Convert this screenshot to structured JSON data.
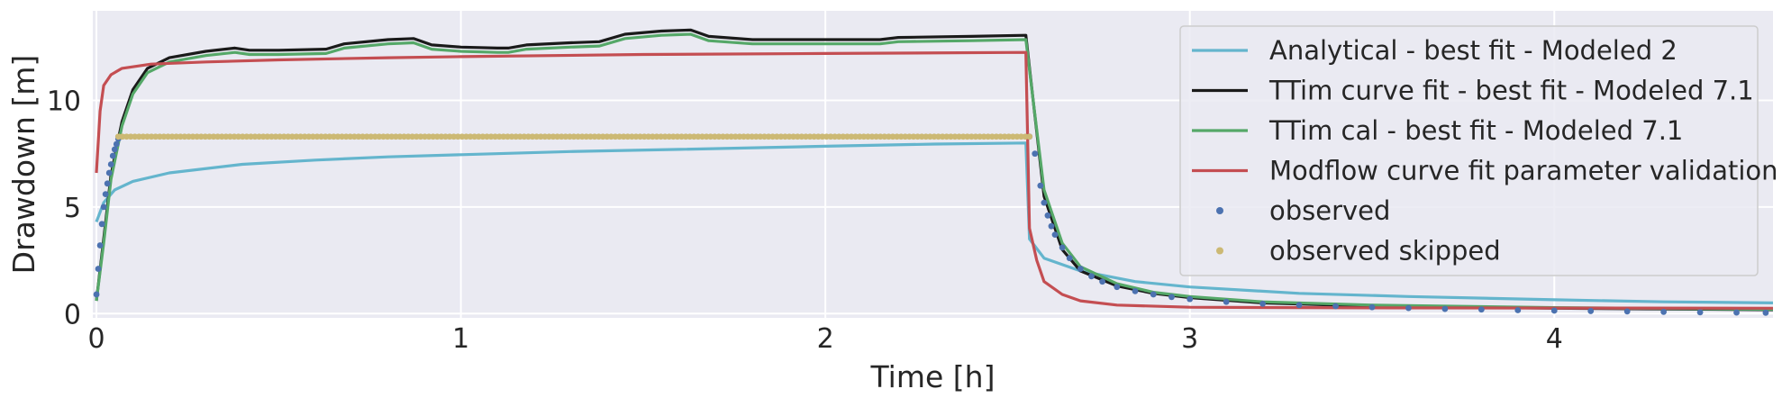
{
  "chart_data": {
    "type": "line",
    "xlabel": "Time [h]",
    "ylabel": "Drawdown [m]",
    "xlim": [
      -0.01,
      4.6
    ],
    "ylim": [
      -0.2,
      14.2
    ],
    "xticks": [
      0,
      1,
      2,
      3,
      4
    ],
    "yticks": [
      0,
      5,
      10
    ],
    "grid": true,
    "legend_position": "top-right",
    "colors": {
      "plot_background": "#eaeaf2",
      "grid": "#ffffff",
      "text": "#262626"
    },
    "series": [
      {
        "name": "Analytical - best fit - Modeled 2",
        "kind": "line",
        "color": "#64b5cd",
        "points": [
          [
            0.0,
            4.3
          ],
          [
            0.02,
            5.2
          ],
          [
            0.05,
            5.8
          ],
          [
            0.1,
            6.2
          ],
          [
            0.2,
            6.6
          ],
          [
            0.4,
            7.0
          ],
          [
            0.6,
            7.2
          ],
          [
            0.8,
            7.35
          ],
          [
            1.0,
            7.45
          ],
          [
            1.3,
            7.6
          ],
          [
            1.6,
            7.7
          ],
          [
            2.0,
            7.85
          ],
          [
            2.3,
            7.95
          ],
          [
            2.55,
            8.0
          ],
          [
            2.56,
            3.5
          ],
          [
            2.6,
            2.6
          ],
          [
            2.7,
            2.0
          ],
          [
            2.85,
            1.5
          ],
          [
            3.0,
            1.25
          ],
          [
            3.3,
            0.95
          ],
          [
            3.6,
            0.8
          ],
          [
            4.0,
            0.65
          ],
          [
            4.3,
            0.55
          ],
          [
            4.6,
            0.5
          ]
        ]
      },
      {
        "name": "TTim curve fit - best fit - Modeled 7.1",
        "kind": "line",
        "color": "#1a1a1a",
        "points": [
          [
            0.0,
            0.6
          ],
          [
            0.02,
            3.5
          ],
          [
            0.04,
            6.5
          ],
          [
            0.07,
            9.0
          ],
          [
            0.1,
            10.5
          ],
          [
            0.14,
            11.5
          ],
          [
            0.2,
            12.0
          ],
          [
            0.3,
            12.3
          ],
          [
            0.38,
            12.45
          ],
          [
            0.42,
            12.35
          ],
          [
            0.5,
            12.35
          ],
          [
            0.63,
            12.4
          ],
          [
            0.68,
            12.65
          ],
          [
            0.8,
            12.85
          ],
          [
            0.87,
            12.9
          ],
          [
            0.92,
            12.6
          ],
          [
            1.0,
            12.5
          ],
          [
            1.1,
            12.45
          ],
          [
            1.13,
            12.45
          ],
          [
            1.18,
            12.6
          ],
          [
            1.3,
            12.7
          ],
          [
            1.38,
            12.75
          ],
          [
            1.45,
            13.1
          ],
          [
            1.55,
            13.25
          ],
          [
            1.63,
            13.3
          ],
          [
            1.68,
            13.0
          ],
          [
            1.8,
            12.85
          ],
          [
            2.0,
            12.85
          ],
          [
            2.15,
            12.85
          ],
          [
            2.2,
            12.95
          ],
          [
            2.4,
            13.0
          ],
          [
            2.55,
            13.05
          ],
          [
            2.57,
            10.0
          ],
          [
            2.6,
            5.5
          ],
          [
            2.65,
            3.0
          ],
          [
            2.7,
            2.0
          ],
          [
            2.8,
            1.3
          ],
          [
            2.9,
            0.95
          ],
          [
            3.0,
            0.75
          ],
          [
            3.2,
            0.5
          ],
          [
            3.5,
            0.35
          ],
          [
            4.0,
            0.25
          ],
          [
            4.6,
            0.18
          ]
        ]
      },
      {
        "name": "TTim cal - best fit - Modeled 7.1",
        "kind": "line",
        "color": "#55a868",
        "points": [
          [
            0.0,
            0.6
          ],
          [
            0.02,
            3.3
          ],
          [
            0.04,
            6.3
          ],
          [
            0.07,
            8.8
          ],
          [
            0.1,
            10.3
          ],
          [
            0.14,
            11.3
          ],
          [
            0.2,
            11.8
          ],
          [
            0.3,
            12.1
          ],
          [
            0.38,
            12.25
          ],
          [
            0.42,
            12.15
          ],
          [
            0.5,
            12.15
          ],
          [
            0.63,
            12.2
          ],
          [
            0.68,
            12.45
          ],
          [
            0.8,
            12.65
          ],
          [
            0.87,
            12.7
          ],
          [
            0.92,
            12.4
          ],
          [
            1.0,
            12.3
          ],
          [
            1.1,
            12.25
          ],
          [
            1.13,
            12.25
          ],
          [
            1.18,
            12.4
          ],
          [
            1.3,
            12.5
          ],
          [
            1.38,
            12.55
          ],
          [
            1.45,
            12.9
          ],
          [
            1.55,
            13.05
          ],
          [
            1.63,
            13.1
          ],
          [
            1.68,
            12.8
          ],
          [
            1.8,
            12.65
          ],
          [
            2.0,
            12.65
          ],
          [
            2.15,
            12.65
          ],
          [
            2.2,
            12.75
          ],
          [
            2.4,
            12.8
          ],
          [
            2.55,
            12.85
          ],
          [
            2.57,
            10.0
          ],
          [
            2.6,
            5.8
          ],
          [
            2.65,
            3.3
          ],
          [
            2.7,
            2.2
          ],
          [
            2.8,
            1.4
          ],
          [
            2.9,
            1.0
          ],
          [
            3.0,
            0.8
          ],
          [
            3.2,
            0.55
          ],
          [
            3.5,
            0.4
          ],
          [
            4.0,
            0.28
          ],
          [
            4.6,
            0.2
          ]
        ]
      },
      {
        "name": "Modflow curve fit parameter validation",
        "kind": "line",
        "color": "#c44e52",
        "points": [
          [
            0.0,
            6.6
          ],
          [
            0.01,
            9.5
          ],
          [
            0.02,
            10.7
          ],
          [
            0.04,
            11.2
          ],
          [
            0.07,
            11.5
          ],
          [
            0.15,
            11.7
          ],
          [
            0.3,
            11.8
          ],
          [
            0.5,
            11.9
          ],
          [
            0.8,
            12.0
          ],
          [
            1.0,
            12.05
          ],
          [
            1.5,
            12.15
          ],
          [
            2.0,
            12.2
          ],
          [
            2.55,
            12.25
          ],
          [
            2.56,
            4.0
          ],
          [
            2.58,
            2.5
          ],
          [
            2.6,
            1.5
          ],
          [
            2.65,
            0.9
          ],
          [
            2.7,
            0.6
          ],
          [
            2.8,
            0.4
          ],
          [
            3.0,
            0.3
          ],
          [
            3.5,
            0.27
          ],
          [
            4.0,
            0.26
          ],
          [
            4.6,
            0.25
          ]
        ]
      },
      {
        "name": "observed",
        "kind": "points",
        "color": "#4c72b0",
        "points": [
          [
            0.0,
            0.9
          ],
          [
            0.005,
            2.1
          ],
          [
            0.01,
            3.2
          ],
          [
            0.015,
            4.2
          ],
          [
            0.02,
            5.0
          ],
          [
            0.025,
            5.6
          ],
          [
            0.03,
            6.1
          ],
          [
            0.035,
            6.6
          ],
          [
            0.04,
            7.0
          ],
          [
            0.045,
            7.4
          ],
          [
            0.05,
            7.7
          ],
          [
            0.055,
            7.95
          ],
          [
            0.06,
            8.2
          ],
          [
            2.56,
            8.3
          ],
          [
            2.575,
            7.5
          ],
          [
            2.59,
            6.0
          ],
          [
            2.6,
            5.2
          ],
          [
            2.61,
            4.6
          ],
          [
            2.62,
            4.1
          ],
          [
            2.63,
            3.7
          ],
          [
            2.65,
            3.1
          ],
          [
            2.67,
            2.6
          ],
          [
            2.7,
            2.1
          ],
          [
            2.73,
            1.75
          ],
          [
            2.76,
            1.5
          ],
          [
            2.8,
            1.25
          ],
          [
            2.85,
            1.05
          ],
          [
            2.9,
            0.9
          ],
          [
            2.95,
            0.78
          ],
          [
            3.0,
            0.68
          ],
          [
            3.1,
            0.55
          ],
          [
            3.2,
            0.46
          ],
          [
            3.3,
            0.4
          ],
          [
            3.4,
            0.35
          ],
          [
            3.5,
            0.3
          ],
          [
            3.6,
            0.26
          ],
          [
            3.7,
            0.22
          ],
          [
            3.8,
            0.19
          ],
          [
            3.9,
            0.16
          ],
          [
            4.0,
            0.14
          ],
          [
            4.1,
            0.12
          ],
          [
            4.2,
            0.1
          ],
          [
            4.3,
            0.08
          ],
          [
            4.4,
            0.06
          ],
          [
            4.5,
            0.05
          ],
          [
            4.58,
            0.04
          ]
        ]
      },
      {
        "name": "observed skipped",
        "kind": "points",
        "color": "#ccb974",
        "x_start": 0.06,
        "x_end": 2.56,
        "y": 8.3
      }
    ]
  }
}
